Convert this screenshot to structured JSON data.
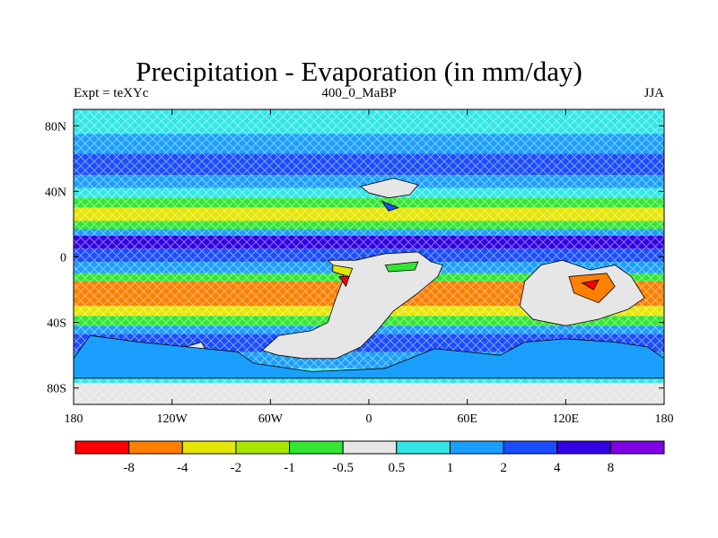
{
  "title": "Precipitation - Evaporation (in mm/day)",
  "left_label": "Expt = teXYc",
  "center_label": "400_0_MaBP",
  "right_label": "JJA",
  "chart_data": {
    "type": "heatmap",
    "title": "Precipitation - Evaporation (in mm/day)",
    "xlim": [
      -180,
      180
    ],
    "ylim": [
      -90,
      90
    ],
    "x_ticks": [
      {
        "value": -180,
        "label": "180"
      },
      {
        "value": -120,
        "label": "120W"
      },
      {
        "value": -60,
        "label": "60W"
      },
      {
        "value": 0,
        "label": "0"
      },
      {
        "value": 60,
        "label": "60E"
      },
      {
        "value": 120,
        "label": "120E"
      },
      {
        "value": 180,
        "label": "180"
      }
    ],
    "y_ticks": [
      {
        "value": 80,
        "label": "80N"
      },
      {
        "value": 40,
        "label": "40N"
      },
      {
        "value": 0,
        "label": "0"
      },
      {
        "value": -40,
        "label": "40S"
      },
      {
        "value": -80,
        "label": "80S"
      }
    ],
    "colorbar": {
      "colors": [
        "#ff0000",
        "#ff8000",
        "#e6e600",
        "#a6e600",
        "#33e633",
        "#e6e6e6",
        "#33e6e6",
        "#1a9fff",
        "#1a4dff",
        "#3300e6",
        "#8000e6"
      ],
      "labels": [
        "-8",
        "-4",
        "-2",
        "-1",
        "-0.5",
        "0.5",
        "1",
        "2",
        "4",
        "8"
      ]
    },
    "zonal_bands": [
      {
        "lat": [
          75,
          90
        ],
        "level": 6
      },
      {
        "lat": [
          63,
          75
        ],
        "level": 7
      },
      {
        "lat": [
          50,
          63
        ],
        "level": 8
      },
      {
        "lat": [
          42,
          50
        ],
        "level": 7
      },
      {
        "lat": [
          36,
          42
        ],
        "level": 6
      },
      {
        "lat": [
          30,
          36
        ],
        "level": 4
      },
      {
        "lat": [
          22,
          30
        ],
        "level": 2
      },
      {
        "lat": [
          17,
          22
        ],
        "level": 4
      },
      {
        "lat": [
          13,
          17
        ],
        "level": 7
      },
      {
        "lat": [
          5,
          13
        ],
        "level": 9
      },
      {
        "lat": [
          -3,
          5
        ],
        "level": 8
      },
      {
        "lat": [
          -10,
          -3
        ],
        "level": 7
      },
      {
        "lat": [
          -15,
          -10
        ],
        "level": 4
      },
      {
        "lat": [
          -30,
          -15
        ],
        "level": 1
      },
      {
        "lat": [
          -36,
          -30
        ],
        "level": 2
      },
      {
        "lat": [
          -42,
          -36
        ],
        "level": 4
      },
      {
        "lat": [
          -47,
          -42
        ],
        "level": 7
      },
      {
        "lat": [
          -58,
          -47
        ],
        "level": 8
      },
      {
        "lat": [
          -68,
          -58
        ],
        "level": 7
      },
      {
        "lat": [
          -77,
          -68
        ],
        "level": 6
      },
      {
        "lat": [
          -90,
          -77
        ],
        "level": 5
      }
    ],
    "regions": [
      {
        "name": "northern-continent",
        "level": 5,
        "lonlat": [
          [
            -5,
            43
          ],
          [
            15,
            48
          ],
          [
            30,
            44
          ],
          [
            25,
            38
          ],
          [
            12,
            36
          ],
          [
            0,
            39
          ]
        ]
      },
      {
        "name": "northern-continent-east-rim",
        "level": 8,
        "lonlat": [
          [
            8,
            34
          ],
          [
            18,
            30
          ],
          [
            12,
            28
          ]
        ]
      },
      {
        "name": "main-continent",
        "level": 5,
        "lonlat": [
          [
            -25,
            -2
          ],
          [
            -8,
            -2
          ],
          [
            10,
            2
          ],
          [
            30,
            3
          ],
          [
            38,
            -3
          ],
          [
            45,
            -5
          ],
          [
            42,
            -12
          ],
          [
            30,
            -22
          ],
          [
            15,
            -33
          ],
          [
            5,
            -45
          ],
          [
            -5,
            -55
          ],
          [
            -20,
            -62
          ],
          [
            -40,
            -62
          ],
          [
            -55,
            -60
          ],
          [
            -65,
            -57
          ],
          [
            -55,
            -48
          ],
          [
            -35,
            -45
          ],
          [
            -25,
            -40
          ],
          [
            -20,
            -25
          ],
          [
            -15,
            -12
          ]
        ]
      },
      {
        "name": "continent-west-dry",
        "level": 2,
        "lonlat": [
          [
            -22,
            -5
          ],
          [
            -10,
            -7
          ],
          [
            -12,
            -12
          ],
          [
            -22,
            -9
          ]
        ]
      },
      {
        "name": "continent-red-patch",
        "level": 0,
        "lonlat": [
          [
            -18,
            -12
          ],
          [
            -12,
            -12
          ],
          [
            -14,
            -18
          ]
        ]
      },
      {
        "name": "continent-green-patch",
        "level": 4,
        "lonlat": [
          [
            10,
            -5
          ],
          [
            30,
            -3
          ],
          [
            28,
            -8
          ],
          [
            12,
            -9
          ]
        ]
      },
      {
        "name": "eastern-continent",
        "level": 5,
        "lonlat": [
          [
            105,
            -5
          ],
          [
            118,
            -2
          ],
          [
            135,
            -8
          ],
          [
            150,
            -5
          ],
          [
            160,
            -12
          ],
          [
            168,
            -25
          ],
          [
            158,
            -32
          ],
          [
            140,
            -38
          ],
          [
            120,
            -42
          ],
          [
            100,
            -38
          ],
          [
            92,
            -30
          ],
          [
            95,
            -15
          ]
        ]
      },
      {
        "name": "eastern-orange-core",
        "level": 1,
        "lonlat": [
          [
            122,
            -12
          ],
          [
            145,
            -10
          ],
          [
            150,
            -18
          ],
          [
            140,
            -28
          ],
          [
            125,
            -22
          ]
        ]
      },
      {
        "name": "eastern-red-spot",
        "level": 0,
        "lonlat": [
          [
            130,
            -16
          ],
          [
            140,
            -14
          ],
          [
            137,
            -20
          ]
        ]
      },
      {
        "name": "southern-pocket",
        "level": 5,
        "lonlat": [
          [
            -112,
            -55
          ],
          [
            -102,
            -52
          ],
          [
            -98,
            -60
          ],
          [
            -108,
            -62
          ]
        ]
      },
      {
        "name": "antarctic-landmass",
        "level": 7,
        "lonlat": [
          [
            -170,
            -48
          ],
          [
            -140,
            -52
          ],
          [
            -110,
            -55
          ],
          [
            -80,
            -58
          ],
          [
            -70,
            -65
          ],
          [
            -35,
            -70
          ],
          [
            10,
            -68
          ],
          [
            40,
            -56
          ],
          [
            60,
            -58
          ],
          [
            80,
            -60
          ],
          [
            95,
            -52
          ],
          [
            120,
            -50
          ],
          [
            150,
            -52
          ],
          [
            170,
            -55
          ],
          [
            180,
            -62
          ],
          [
            180,
            -74
          ],
          [
            -180,
            -74
          ],
          [
            -180,
            -62
          ]
        ]
      }
    ]
  }
}
